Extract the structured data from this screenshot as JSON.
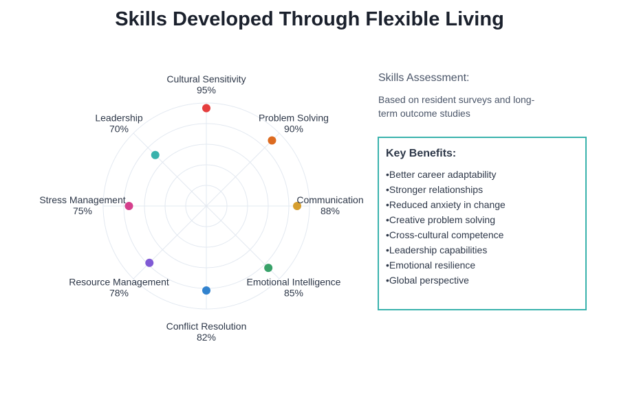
{
  "page": {
    "title": "Skills Developed Through Flexible Living"
  },
  "chart_data": {
    "type": "radar",
    "title": "Skills Developed Through Flexible Living",
    "rlim": [
      0,
      100
    ],
    "rings": 5,
    "grid": true,
    "axes": [
      {
        "name": "Cultural Sensitivity",
        "value": 95,
        "value_label": "95%",
        "color": "#e53e3e"
      },
      {
        "name": "Problem Solving",
        "value": 90,
        "value_label": "90%",
        "color": "#dd6b20"
      },
      {
        "name": "Communication",
        "value": 88,
        "value_label": "88%",
        "color": "#d69e2e"
      },
      {
        "name": "Emotional Intelligence",
        "value": 85,
        "value_label": "85%",
        "color": "#38a169"
      },
      {
        "name": "Conflict Resolution",
        "value": 82,
        "value_label": "82%",
        "color": "#3182ce"
      },
      {
        "name": "Resource Management",
        "value": 78,
        "value_label": "78%",
        "color": "#805ad5"
      },
      {
        "name": "Stress Management",
        "value": 75,
        "value_label": "75%",
        "color": "#d53f8c"
      },
      {
        "name": "Leadership",
        "value": 70,
        "value_label": "70%",
        "color": "#38b2ac"
      }
    ]
  },
  "sidebar": {
    "title": "Skills Assessment:",
    "description": "Based on resident surveys and long-term outcome studies",
    "benefits_title": "Key Benefits:",
    "benefits": [
      "Better career adaptability",
      "Stronger relationships",
      "Reduced anxiety in change",
      "Creative problem solving",
      "Cross-cultural competence",
      "Leadership capabilities",
      "Emotional resilience",
      "Global perspective"
    ]
  }
}
